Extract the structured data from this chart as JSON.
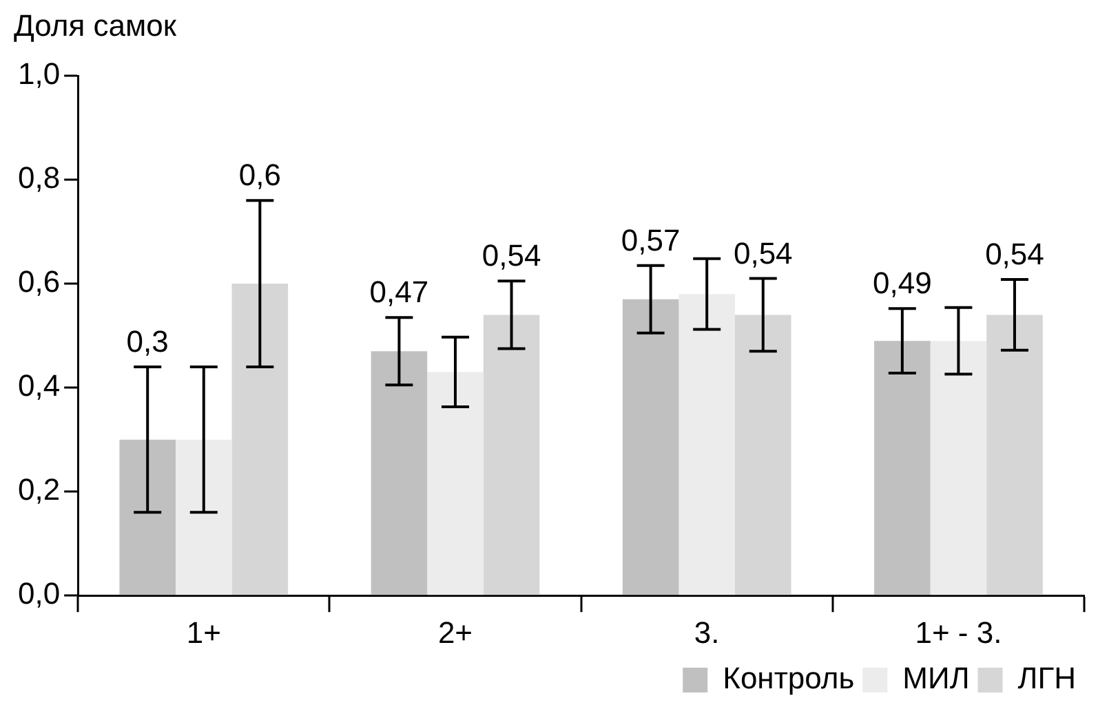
{
  "chart_data": {
    "type": "bar",
    "ylabel": "Доля самок",
    "categories": [
      "1+",
      "2+",
      "3.",
      "1+ - 3."
    ],
    "series": [
      {
        "name": "Контроль",
        "color": "#c0c0c0",
        "values": [
          0.3,
          0.47,
          0.57,
          0.49
        ],
        "errors": [
          0.14,
          0.065,
          0.065,
          0.062
        ],
        "value_labels": [
          "0,3",
          "0,47",
          "0,57",
          "0,49"
        ]
      },
      {
        "name": "МИЛ",
        "color": "#ececec",
        "values": [
          0.3,
          0.43,
          0.58,
          0.49
        ],
        "errors": [
          0.14,
          0.067,
          0.068,
          0.064
        ],
        "value_labels": [
          null,
          null,
          null,
          null
        ]
      },
      {
        "name": "ЛГН",
        "color": "#d6d6d6",
        "values": [
          0.6,
          0.54,
          0.54,
          0.54
        ],
        "errors": [
          0.16,
          0.065,
          0.07,
          0.068
        ],
        "value_labels": [
          "0,6",
          "0,54",
          "0,54",
          "0,54"
        ]
      }
    ],
    "ylim": [
      0,
      1
    ],
    "yticks": [
      {
        "value": 0,
        "label": "0,0"
      },
      {
        "value": 0.2,
        "label": "0,2"
      },
      {
        "value": 0.4,
        "label": "0,4"
      },
      {
        "value": 0.6,
        "label": "0,6"
      },
      {
        "value": 0.8,
        "label": "0,8"
      },
      {
        "value": 1,
        "label": "1,0"
      }
    ],
    "grid": false,
    "legend": "bottom"
  }
}
